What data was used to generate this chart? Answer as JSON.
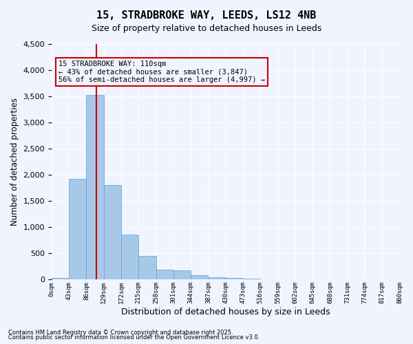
{
  "title_line1": "15, STRADBROKE WAY, LEEDS, LS12 4NB",
  "title_line2": "Size of property relative to detached houses in Leeds",
  "xlabel": "Distribution of detached houses by size in Leeds",
  "ylabel": "Number of detached properties",
  "annotation_title": "15 STRADBROKE WAY: 110sqm",
  "annotation_line2": "← 43% of detached houses are smaller (3,847)",
  "annotation_line3": "56% of semi-detached houses are larger (4,997) →",
  "footnote1": "Contains HM Land Registry data © Crown copyright and database right 2025.",
  "footnote2": "Contains public sector information licensed under the Open Government Licence v3.0.",
  "bar_color": "#a8c8e8",
  "bar_edge_color": "#5a9fd4",
  "vline_color": "#cc0000",
  "annotation_box_color": "#cc0000",
  "background_color": "#f0f4ff",
  "grid_color": "#ffffff",
  "bins": [
    "0sqm",
    "43sqm",
    "86sqm",
    "129sqm",
    "172sqm",
    "215sqm",
    "258sqm",
    "301sqm",
    "344sqm",
    "387sqm",
    "430sqm",
    "473sqm",
    "516sqm",
    "559sqm",
    "602sqm",
    "645sqm",
    "688sqm",
    "731sqm",
    "774sqm",
    "817sqm",
    "860sqm"
  ],
  "bar_heights": [
    30,
    1930,
    3530,
    1800,
    855,
    450,
    185,
    175,
    90,
    50,
    35,
    20,
    5,
    3,
    2,
    1,
    1,
    0,
    0,
    0
  ],
  "vline_x": 2.56,
  "ylim": [
    0,
    4500
  ],
  "yticks": [
    0,
    500,
    1000,
    1500,
    2000,
    2500,
    3000,
    3500,
    4000,
    4500
  ]
}
